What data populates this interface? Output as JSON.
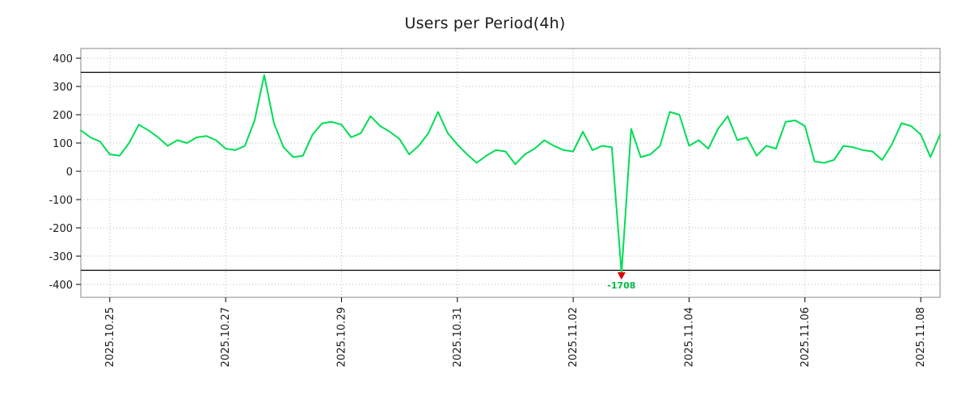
{
  "title": "Users per Period(4h)",
  "chart_data": {
    "type": "line",
    "title": "Users per Period(4h)",
    "xlabel": "",
    "ylabel": "",
    "ylim": [
      -400,
      400
    ],
    "yticks": [
      400,
      300,
      200,
      100,
      0,
      -100,
      -200,
      -300,
      -400
    ],
    "x_tick_labels": [
      "2025.10.25",
      "2025.10.27",
      "2025.10.29",
      "2025.10.31",
      "2025.11.02",
      "2025.11.04",
      "2025.11.06",
      "2025.11.08"
    ],
    "x_tick_indices": [
      3,
      15,
      27,
      39,
      51,
      63,
      75,
      87
    ],
    "interval_hours": 4,
    "grid": true,
    "legend": "none",
    "line_color": "#00dd55",
    "grid_color": "#b8b8b8",
    "threshold_color": "#000000",
    "upper_bound": 350,
    "lower_bound": -350,
    "min_marker": {
      "index": 56,
      "value": -1708,
      "label": "-1708",
      "marker_color": "#e00000",
      "label_color": "#00bb44"
    },
    "values": [
      145,
      120,
      105,
      60,
      55,
      100,
      165,
      145,
      120,
      90,
      110,
      100,
      120,
      125,
      110,
      80,
      75,
      90,
      180,
      340,
      170,
      85,
      50,
      55,
      130,
      170,
      175,
      165,
      120,
      135,
      195,
      160,
      140,
      115,
      60,
      90,
      135,
      210,
      135,
      95,
      60,
      30,
      55,
      75,
      70,
      25,
      60,
      80,
      110,
      90,
      75,
      70,
      140,
      75,
      90,
      85,
      -1708,
      150,
      50,
      60,
      90,
      210,
      200,
      90,
      110,
      80,
      150,
      195,
      110,
      120,
      55,
      90,
      80,
      175,
      180,
      160,
      35,
      30,
      40,
      90,
      85,
      75,
      70,
      40,
      95,
      170,
      160,
      130,
      50,
      130
    ]
  }
}
